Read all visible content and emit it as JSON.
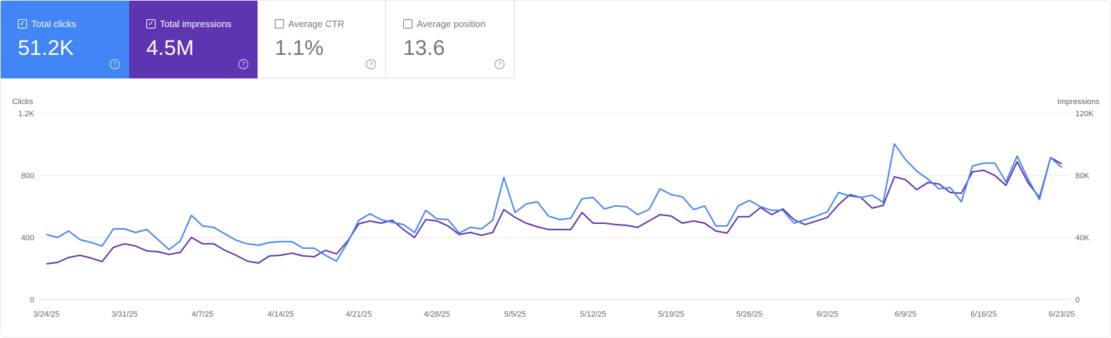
{
  "metrics": [
    {
      "label": "Total clicks",
      "value": "51.2K",
      "checked": true,
      "color": "#4285f4"
    },
    {
      "label": "Total impressions",
      "value": "4.5M",
      "checked": true,
      "color": "#5e35b1"
    },
    {
      "label": "Average CTR",
      "value": "1.1%",
      "checked": false
    },
    {
      "label": "Average position",
      "value": "13.6",
      "checked": false
    }
  ],
  "chart_data": {
    "type": "line",
    "left_axis": {
      "label": "Clicks",
      "ticks": [
        "0",
        "400",
        "800",
        "1.2K"
      ],
      "range": [
        0,
        1200
      ]
    },
    "right_axis": {
      "label": "Impressions",
      "ticks": [
        "0",
        "40K",
        "80K",
        "120K"
      ],
      "range": [
        0,
        120000
      ]
    },
    "x_ticks": [
      "3/24/25",
      "3/31/25",
      "4/7/25",
      "4/14/25",
      "4/21/25",
      "4/28/25",
      "5/5/25",
      "5/12/25",
      "5/19/25",
      "5/26/25",
      "6/2/25",
      "6/9/25",
      "6/16/25",
      "6/23/25"
    ],
    "grid": true,
    "x": [
      "3/24",
      "3/25",
      "3/26",
      "3/27",
      "3/28",
      "3/29",
      "3/30",
      "3/31",
      "4/1",
      "4/2",
      "4/3",
      "4/4",
      "4/5",
      "4/6",
      "4/7",
      "4/8",
      "4/9",
      "4/10",
      "4/11",
      "4/12",
      "4/13",
      "4/14",
      "4/15",
      "4/16",
      "4/17",
      "4/18",
      "4/19",
      "4/20",
      "4/21",
      "4/22",
      "4/23",
      "4/24",
      "4/25",
      "4/26",
      "4/27",
      "4/28",
      "4/29",
      "4/30",
      "5/1",
      "5/2",
      "5/3",
      "5/4",
      "5/5",
      "5/6",
      "5/7",
      "5/8",
      "5/9",
      "5/10",
      "5/11",
      "5/12",
      "5/13",
      "5/14",
      "5/15",
      "5/16",
      "5/17",
      "5/18",
      "5/19",
      "5/20",
      "5/21",
      "5/22",
      "5/23",
      "5/24",
      "5/25",
      "5/26",
      "5/27",
      "5/28",
      "5/29",
      "5/30",
      "5/31",
      "6/1",
      "6/2",
      "6/3",
      "6/4",
      "6/5",
      "6/6",
      "6/7",
      "6/8",
      "6/9",
      "6/10",
      "6/11",
      "6/12",
      "6/13",
      "6/14",
      "6/15",
      "6/16",
      "6/17",
      "6/18",
      "6/19",
      "6/20",
      "6/21",
      "6/22",
      "6/23"
    ],
    "series": [
      {
        "name": "Clicks",
        "axis": "left",
        "color": "#4285f4",
        "values": [
          419,
          400,
          442,
          386,
          368,
          345,
          455,
          455,
          432,
          451,
          386,
          322,
          377,
          543,
          474,
          465,
          423,
          382,
          359,
          350,
          368,
          373,
          373,
          331,
          331,
          285,
          248,
          368,
          511,
          552,
          515,
          497,
          483,
          432,
          575,
          520,
          515,
          428,
          465,
          455,
          511,
          787,
          561,
          616,
          630,
          538,
          515,
          524,
          649,
          658,
          584,
          603,
          598,
          547,
          580,
          713,
          676,
          662,
          580,
          603,
          474,
          474,
          603,
          639,
          598,
          575,
          575,
          492,
          515,
          538,
          566,
          690,
          667,
          658,
          672,
          626,
          1003,
          902,
          828,
          777,
          713,
          722,
          630,
          860,
          879,
          879,
          759,
          925,
          773,
          644,
          915,
          851
        ]
      },
      {
        "name": "Impressions",
        "axis": "right",
        "color": "#5e35b1",
        "values": [
          23000,
          23900,
          27100,
          28500,
          26700,
          24400,
          33600,
          35900,
          34500,
          31300,
          30800,
          29000,
          30400,
          40000,
          35900,
          35900,
          31700,
          28500,
          24800,
          23500,
          28100,
          28500,
          29900,
          28100,
          27600,
          31700,
          29400,
          37700,
          48800,
          50600,
          49200,
          51100,
          45100,
          40000,
          51500,
          50600,
          47400,
          41900,
          43200,
          41400,
          43200,
          58000,
          52900,
          49200,
          46900,
          45100,
          45100,
          45100,
          56100,
          49200,
          49200,
          48300,
          47800,
          46500,
          50600,
          54700,
          53800,
          49200,
          50600,
          49200,
          44200,
          42800,
          53400,
          53400,
          59300,
          54700,
          58400,
          51500,
          48300,
          50600,
          52900,
          61200,
          67600,
          65800,
          58900,
          60700,
          79100,
          77300,
          70800,
          75400,
          74500,
          69000,
          68500,
          82300,
          83300,
          80000,
          73600,
          88800,
          75000,
          65800,
          91500,
          87400
        ]
      }
    ]
  }
}
